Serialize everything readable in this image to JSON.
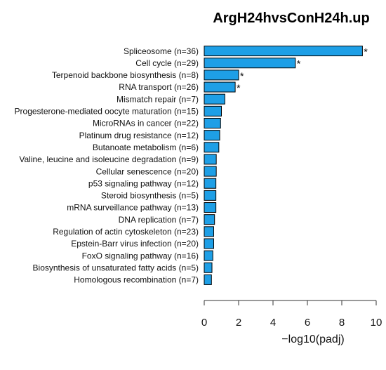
{
  "chart_data": {
    "type": "bar",
    "orientation": "horizontal",
    "title": "ArgH24hvsConH24h.up",
    "xlabel": "−log10(padj)",
    "ylabel": "",
    "xlim": [
      0,
      10
    ],
    "xticks": [
      "0",
      "2",
      "4",
      "6",
      "8",
      "10"
    ],
    "grid": false,
    "bar_color": "#1E9FE6",
    "bar_edge_color": "#000000",
    "categories": [
      "Spliceosome (n=36)",
      "Cell cycle (n=29)",
      "Terpenoid backbone biosynthesis (n=8)",
      "RNA transport (n=26)",
      "Mismatch repair (n=7)",
      "Progesterone-mediated oocyte maturation (n=15)",
      "MicroRNAs in cancer (n=22)",
      "Platinum drug resistance (n=12)",
      "Butanoate metabolism (n=6)",
      "Valine, leucine and isoleucine degradation (n=9)",
      "Cellular senescence (n=20)",
      "p53 signaling pathway (n=12)",
      "Steroid biosynthesis (n=5)",
      "mRNA surveillance pathway (n=13)",
      "DNA replication (n=7)",
      "Regulation of actin cytoskeleton (n=23)",
      "Epstein-Barr virus infection (n=20)",
      "FoxO signaling pathway (n=16)",
      "Biosynthesis of unsaturated fatty acids (n=5)",
      "Homologous recombination (n=7)"
    ],
    "values": [
      9.2,
      5.3,
      2.0,
      1.8,
      1.2,
      1.0,
      0.95,
      0.9,
      0.85,
      0.7,
      0.7,
      0.68,
      0.68,
      0.68,
      0.6,
      0.55,
      0.55,
      0.5,
      0.45,
      0.42
    ],
    "annotations": [
      "*",
      "*",
      "*",
      "*",
      "",
      "",
      "",
      "",
      "",
      "",
      "",
      "",
      "",
      "",
      "",
      "",
      "",
      "",
      "",
      ""
    ]
  }
}
